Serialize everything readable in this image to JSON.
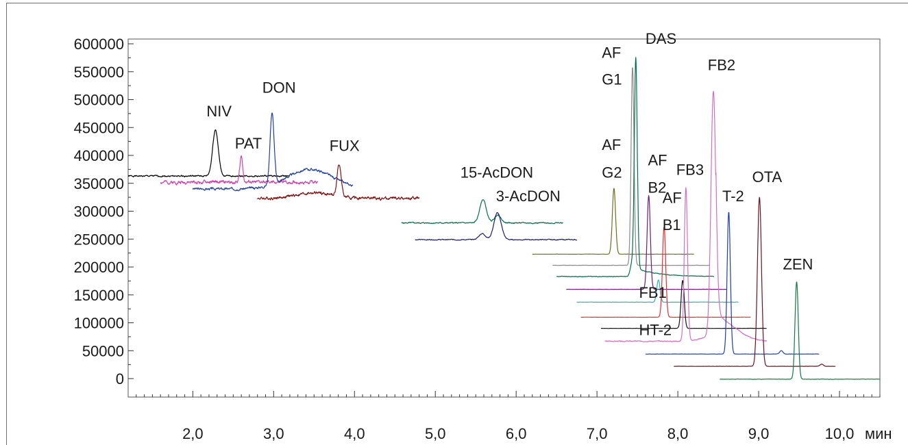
{
  "chart_data": {
    "type": "line",
    "title": "",
    "xlabel": "",
    "ylabel": "",
    "x_unit": "мин",
    "xlim": [
      1.2,
      10.5
    ],
    "ylim": [
      -35000,
      600000
    ],
    "x_ticks": [
      2.0,
      3.0,
      4.0,
      5.0,
      6.0,
      7.0,
      8.0,
      9.0,
      10.0
    ],
    "x_tick_labels": [
      "2,0",
      "3,0",
      "4,0",
      "5,0",
      "6,0",
      "7,0",
      "8,0",
      "9,0",
      "10,0"
    ],
    "y_ticks": [
      0,
      50000,
      100000,
      150000,
      200000,
      250000,
      300000,
      350000,
      400000,
      450000,
      500000,
      550000,
      600000
    ],
    "y_tick_labels": [
      "0",
      "50000",
      "100000",
      "150000",
      "200000",
      "250000",
      "300000",
      "350000",
      "400000",
      "450000",
      "500000",
      "550000",
      "600000"
    ],
    "grid": false,
    "legend": "none",
    "series": [
      {
        "name": "NIV",
        "color": "#000000",
        "x_range": [
          1.2,
          3.2
        ],
        "baseline": 363000,
        "noise": 1500,
        "seed": 1,
        "peaks": [
          {
            "x": 2.28,
            "height": 83000,
            "width": 0.035
          }
        ]
      },
      {
        "name": "PAT",
        "color": "#cc44aa",
        "x_range": [
          1.6,
          3.55
        ],
        "baseline": 352000,
        "noise": 3500,
        "seed": 2,
        "peaks": [
          {
            "x": 2.6,
            "height": 46000,
            "width": 0.018
          }
        ]
      },
      {
        "name": "DON",
        "color": "#1f3f9f",
        "x_range": [
          2.0,
          3.98
        ],
        "baseline": 340000,
        "noise": 2500,
        "seed": 3,
        "bumps": [
          {
            "x": 3.45,
            "height": 35000,
            "width": 0.28
          }
        ],
        "peaks": [
          {
            "x": 2.98,
            "height": 128000,
            "width": 0.025
          }
        ]
      },
      {
        "name": "FUX",
        "color": "#7f1010",
        "x_range": [
          2.8,
          4.8
        ],
        "baseline": 323000,
        "noise": 3000,
        "seed": 4,
        "bumps": [
          {
            "x": 3.5,
            "height": 10000,
            "width": 0.22
          }
        ],
        "peaks": [
          {
            "x": 3.81,
            "height": 58000,
            "width": 0.025
          }
        ]
      },
      {
        "name": "15-AcDON",
        "color": "#006e4a",
        "x_range": [
          4.58,
          6.58
        ],
        "baseline": 279000,
        "noise": 1200,
        "seed": 5,
        "peaks": [
          {
            "x": 5.59,
            "height": 42000,
            "width": 0.04
          },
          {
            "x": 5.77,
            "height": 14000,
            "width": 0.04
          }
        ]
      },
      {
        "name": "3-AcDON",
        "color": "#1c1c6e",
        "x_range": [
          4.75,
          6.75
        ],
        "baseline": 249000,
        "noise": 900,
        "seed": 6,
        "peaks": [
          {
            "x": 5.58,
            "height": 11000,
            "width": 0.04
          },
          {
            "x": 5.77,
            "height": 48000,
            "width": 0.045
          }
        ]
      },
      {
        "name": "AF G2",
        "color": "#6e6e1c",
        "x_range": [
          6.2,
          8.2
        ],
        "baseline": 223000,
        "noise": 200,
        "seed": 7,
        "peaks": [
          {
            "x": 7.21,
            "height": 118000,
            "width": 0.02
          }
        ]
      },
      {
        "name": "AF G1",
        "color": "#8a8a8a",
        "x_range": [
          6.45,
          8.4
        ],
        "baseline": 203000,
        "noise": 200,
        "seed": 8,
        "peaks": [
          {
            "x": 7.44,
            "height": 356000,
            "width": 0.018
          }
        ]
      },
      {
        "name": "DAS",
        "color": "#006e4a",
        "x_range": [
          6.5,
          8.45
        ],
        "baseline": 183000,
        "noise": 600,
        "seed": 9,
        "peaks": [
          {
            "x": 7.48,
            "height": 392000,
            "width": 0.018
          },
          {
            "x": 7.43,
            "height": 22000,
            "width": 0.02
          }
        ],
        "tail": {
          "x": 7.5,
          "height": 14000,
          "decay": 0.25
        }
      },
      {
        "name": "AF B2",
        "color": "#6e1a7a",
        "x_range": [
          6.62,
          8.6
        ],
        "baseline": 160000,
        "noise": 200,
        "seed": 10,
        "peaks": [
          {
            "x": 7.64,
            "height": 168000,
            "width": 0.02
          }
        ]
      },
      {
        "name": "FB1",
        "color": "#22b6b6",
        "x_range": [
          6.75,
          8.75
        ],
        "baseline": 137000,
        "noise": 300,
        "seed": 11,
        "peaks": [
          {
            "x": 7.76,
            "height": 40000,
            "width": 0.02
          }
        ]
      },
      {
        "name": "AF B1",
        "color": "#e03030",
        "x_range": [
          6.8,
          8.9
        ],
        "baseline": 110000,
        "noise": 200,
        "seed": 12,
        "peaks": [
          {
            "x": 7.83,
            "height": 162000,
            "width": 0.02
          }
        ]
      },
      {
        "name": "HT-2",
        "color": "#111111",
        "x_range": [
          7.05,
          9.1
        ],
        "baseline": 90000,
        "noise": 200,
        "seed": 13,
        "peaks": [
          {
            "x": 8.06,
            "height": 86000,
            "width": 0.02
          }
        ]
      },
      {
        "name": "FB3",
        "color": "#d070c0",
        "x_range": [
          7.1,
          9.1
        ],
        "baseline": 67000,
        "noise": 900,
        "seed": 14,
        "peaks": [
          {
            "x": 8.1,
            "height": 275000,
            "width": 0.02
          },
          {
            "x": 8.44,
            "height": 433000,
            "width": 0.03
          }
        ],
        "bumps": [
          {
            "x": 8.6,
            "height": 22000,
            "width": 0.18
          }
        ],
        "tail": {
          "x": 8.47,
          "height": 40000,
          "decay": 0.12
        }
      },
      {
        "name": "T-2",
        "color": "#1f3f9f",
        "x_range": [
          7.6,
          9.75
        ],
        "baseline": 44000,
        "noise": 200,
        "seed": 15,
        "peaks": [
          {
            "x": 8.63,
            "height": 255000,
            "width": 0.02
          },
          {
            "x": 9.28,
            "height": 6000,
            "width": 0.02
          }
        ]
      },
      {
        "name": "OTA",
        "color": "#6e1020",
        "x_range": [
          7.95,
          9.95
        ],
        "baseline": 22000,
        "noise": 200,
        "seed": 16,
        "peaks": [
          {
            "x": 9.01,
            "height": 303000,
            "width": 0.025
          },
          {
            "x": 9.78,
            "height": 4000,
            "width": 0.02
          }
        ]
      },
      {
        "name": "ZEN",
        "color": "#107a42",
        "x_range": [
          8.52,
          10.5
        ],
        "baseline": -1000,
        "noise": 300,
        "seed": 17,
        "peaks": [
          {
            "x": 9.47,
            "height": 175000,
            "width": 0.02
          }
        ]
      }
    ],
    "annotations": [
      {
        "text": "NIV",
        "x": 2.17,
        "y": 470000
      },
      {
        "text": "PAT",
        "x": 2.52,
        "y": 412000
      },
      {
        "text": "DON",
        "x": 2.86,
        "y": 512000
      },
      {
        "text": "FUX",
        "x": 3.69,
        "y": 408000
      },
      {
        "text": "15-AcDON",
        "x": 5.31,
        "y": 360000
      },
      {
        "text": "3-AcDON",
        "x": 5.75,
        "y": 318000
      },
      {
        "text": "AF",
        "x": 7.06,
        "y": 410000
      },
      {
        "text": "G2",
        "x": 7.06,
        "y": 360000
      },
      {
        "text": "AF",
        "x": 7.06,
        "y": 575000
      },
      {
        "text": "G1",
        "x": 7.06,
        "y": 527000
      },
      {
        "text": "DAS",
        "x": 7.6,
        "y": 600000
      },
      {
        "text": "AF",
        "x": 7.63,
        "y": 382000
      },
      {
        "text": "B2",
        "x": 7.63,
        "y": 333000
      },
      {
        "text": "FB3",
        "x": 7.98,
        "y": 365000
      },
      {
        "text": "AF",
        "x": 7.81,
        "y": 315000
      },
      {
        "text": "B1",
        "x": 7.81,
        "y": 266000
      },
      {
        "text": "FB2",
        "x": 8.37,
        "y": 553000
      },
      {
        "text": "T-2",
        "x": 8.55,
        "y": 318000
      },
      {
        "text": "OTA",
        "x": 8.92,
        "y": 352000
      },
      {
        "text": "ZEN",
        "x": 9.3,
        "y": 196000
      },
      {
        "text": "FB1",
        "x": 7.52,
        "y": 145000
      },
      {
        "text": "HT-2",
        "x": 7.52,
        "y": 78000
      }
    ]
  }
}
